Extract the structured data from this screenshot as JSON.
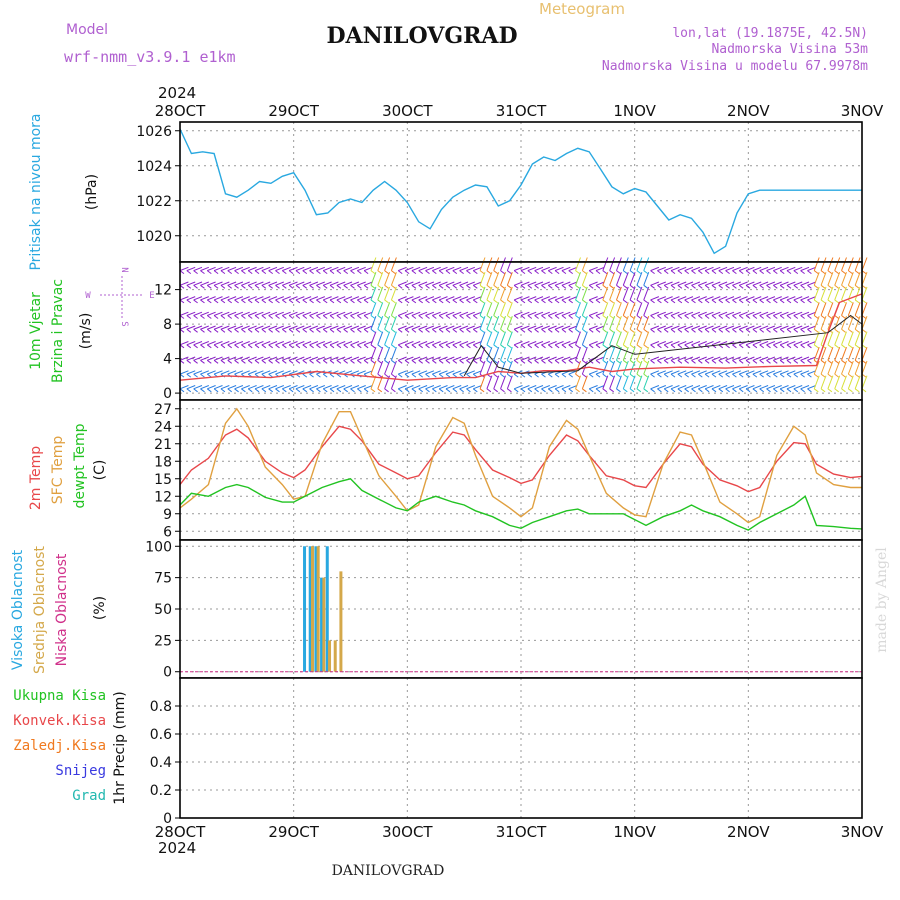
{
  "header": {
    "model_label": "Model",
    "model_name": "wrf-nmm_v3.9.1  e1km",
    "title": "DANILOVGRAD",
    "meteogram_label": "Meteogram",
    "coords": "lon,lat (19.1875E, 42.5N)",
    "altitude": "Nadmorska Visina 53m",
    "model_altitude": "Nadmorska Visina u modelu 67.9978m",
    "year": "2024",
    "footer_title": "DANILOVGRAD",
    "credit": "made by Angel"
  },
  "colors": {
    "pressure": "#29a8e0",
    "t2m": "#e8474a",
    "sfc": "#e0a040",
    "dewpt": "#22c322",
    "high_cloud": "#29a8e0",
    "mid_cloud": "#d4a84a",
    "low_cloud": "#d0308a",
    "barb_calm": "#8a1fc9",
    "barb_mid": "#2a7de0",
    "speed_line": "#e8474a",
    "gust_line": "#222222"
  },
  "chart_data": [
    {
      "type": "line",
      "name": "pressure",
      "labels": [
        "Pritisak na nivou mora",
        "(hPa)"
      ],
      "x_ticks": [
        "28OCT",
        "29OCT",
        "30OCT",
        "31OCT",
        "1NOV",
        "2NOV",
        "3NOV"
      ],
      "ylim": [
        1018.5,
        1026.5
      ],
      "y_ticks": [
        1020,
        1022,
        1024,
        1026
      ],
      "grid": true,
      "series": [
        {
          "color_key": "pressure",
          "x": [
            0,
            0.1,
            0.2,
            0.3,
            0.4,
            0.5,
            0.6,
            0.7,
            0.8,
            0.9,
            1.0,
            1.1,
            1.2,
            1.3,
            1.4,
            1.5,
            1.6,
            1.7,
            1.8,
            1.9,
            2.0,
            2.1,
            2.2,
            2.3,
            2.4,
            2.5,
            2.6,
            2.7,
            2.8,
            2.9,
            3.0,
            3.1,
            3.2,
            3.3,
            3.4,
            3.5,
            3.6,
            3.7,
            3.8,
            3.9,
            4.0,
            4.1,
            4.2,
            4.3,
            4.4,
            4.5,
            4.6,
            4.7,
            4.8,
            4.9,
            5.0,
            5.1,
            5.2,
            5.3,
            5.4,
            5.5,
            5.6,
            5.7,
            5.8,
            5.9,
            6.0
          ],
          "y": [
            1026.1,
            1024.7,
            1024.8,
            1024.7,
            1022.4,
            1022.2,
            1022.6,
            1023.1,
            1023.0,
            1023.4,
            1023.6,
            1022.6,
            1021.2,
            1021.3,
            1021.9,
            1022.1,
            1021.9,
            1022.6,
            1023.1,
            1022.6,
            1021.9,
            1020.8,
            1020.4,
            1021.5,
            1022.2,
            1022.6,
            1022.9,
            1022.8,
            1021.7,
            1022.0,
            1022.9,
            1024.1,
            1024.5,
            1024.3,
            1024.7,
            1025.0,
            1024.8,
            1023.8,
            1022.8,
            1022.4,
            1022.7,
            1022.5,
            1021.7,
            1020.9,
            1021.2,
            1021.0,
            1020.2,
            1019.0,
            1019.4,
            1021.3,
            1022.4,
            1022.6,
            1022.6,
            1022.6,
            1022.6,
            1022.6,
            1022.6,
            1022.6,
            1022.6,
            1022.6,
            1022.6
          ]
        }
      ]
    },
    {
      "type": "line",
      "name": "wind",
      "labels": [
        "10m Vjetar",
        "Brzina i Pravac",
        "(m/s)"
      ],
      "compass": [
        "W",
        "E",
        "N",
        "S"
      ],
      "ylim": [
        -0.8,
        15.2
      ],
      "y_ticks": [
        0,
        4,
        8,
        12
      ],
      "grid": true,
      "series": [
        {
          "color_key": "speed_line",
          "x": [
            0,
            0.4,
            0.8,
            1.2,
            1.6,
            2.0,
            2.4,
            2.6,
            2.8,
            3.0,
            3.2,
            3.4,
            3.6,
            3.8,
            4.0,
            4.4,
            4.8,
            5.2,
            5.6,
            5.7,
            5.8,
            6.0
          ],
          "y": [
            1.5,
            2.0,
            1.8,
            2.5,
            2.0,
            1.5,
            1.8,
            1.8,
            2.5,
            2.3,
            2.6,
            2.6,
            3.0,
            2.5,
            2.8,
            3.0,
            2.9,
            3.1,
            3.2,
            7.0,
            10.5,
            11.5
          ]
        },
        {
          "color_key": "gust_line",
          "x": [
            2.5,
            2.65,
            2.8,
            3.0,
            3.5,
            3.8,
            4.0,
            5.7,
            5.9,
            6.0
          ],
          "y": [
            2.0,
            5.5,
            3.0,
            2.3,
            2.6,
            5.5,
            4.5,
            7.0,
            9.0,
            8.0
          ]
        }
      ]
    },
    {
      "type": "line",
      "name": "temperature",
      "labels": [
        "2m Temp",
        "SFC Temp",
        "dewpt Temp",
        "(C)"
      ],
      "ylim": [
        4.5,
        28.5
      ],
      "y_ticks": [
        6,
        9,
        12,
        15,
        18,
        21,
        24,
        27
      ],
      "grid": true,
      "series": [
        {
          "color_key": "t2m",
          "x": [
            0,
            0.1,
            0.25,
            0.4,
            0.5,
            0.6,
            0.75,
            0.9,
            1.0,
            1.1,
            1.25,
            1.4,
            1.5,
            1.6,
            1.75,
            1.9,
            2.0,
            2.1,
            2.25,
            2.4,
            2.5,
            2.6,
            2.75,
            2.9,
            3.0,
            3.1,
            3.25,
            3.4,
            3.5,
            3.6,
            3.75,
            3.9,
            4.0,
            4.1,
            4.25,
            4.4,
            4.5,
            4.6,
            4.75,
            4.9,
            5.0,
            5.1,
            5.25,
            5.4,
            5.5,
            5.6,
            5.75,
            5.9,
            6.0
          ],
          "y": [
            14.0,
            16.5,
            18.5,
            22.5,
            23.5,
            22.0,
            18.0,
            16.0,
            15.2,
            16.5,
            20.5,
            24.0,
            23.5,
            21.5,
            17.5,
            16.0,
            15.0,
            15.5,
            19.5,
            23.0,
            22.5,
            20.0,
            16.5,
            15.2,
            14.2,
            14.8,
            19.0,
            22.5,
            21.5,
            19.0,
            15.5,
            14.8,
            13.8,
            13.5,
            17.5,
            21.0,
            20.5,
            17.5,
            14.8,
            13.8,
            12.8,
            13.5,
            18.0,
            21.2,
            21.0,
            17.5,
            15.8,
            15.2,
            15.4
          ]
        },
        {
          "color_key": "sfc",
          "x": [
            0,
            0.1,
            0.25,
            0.4,
            0.5,
            0.6,
            0.75,
            0.9,
            1.0,
            1.1,
            1.25,
            1.4,
            1.5,
            1.6,
            1.75,
            1.9,
            2.0,
            2.1,
            2.25,
            2.4,
            2.5,
            2.6,
            2.75,
            2.9,
            3.0,
            3.1,
            3.25,
            3.4,
            3.5,
            3.6,
            3.75,
            3.9,
            4.0,
            4.1,
            4.25,
            4.4,
            4.5,
            4.6,
            4.75,
            4.9,
            5.0,
            5.1,
            5.25,
            5.4,
            5.5,
            5.6,
            5.75,
            5.9,
            6.0
          ],
          "y": [
            10.0,
            11.5,
            14.0,
            24.5,
            27.0,
            24.0,
            17.0,
            14.0,
            11.5,
            12.0,
            21.0,
            26.5,
            26.5,
            22.0,
            15.5,
            12.0,
            9.5,
            10.5,
            20.5,
            25.5,
            24.5,
            19.0,
            12.0,
            10.0,
            8.5,
            10.0,
            20.5,
            25.0,
            23.5,
            19.0,
            12.5,
            10.0,
            8.8,
            8.5,
            17.5,
            23.0,
            22.5,
            18.0,
            11.0,
            9.0,
            7.5,
            8.5,
            19.0,
            24.0,
            22.5,
            16.0,
            14.0,
            13.5,
            13.5
          ]
        },
        {
          "color_key": "dewpt",
          "x": [
            0,
            0.1,
            0.25,
            0.4,
            0.5,
            0.6,
            0.75,
            0.9,
            1.0,
            1.1,
            1.25,
            1.4,
            1.5,
            1.6,
            1.75,
            1.9,
            2.0,
            2.1,
            2.25,
            2.4,
            2.5,
            2.6,
            2.75,
            2.9,
            3.0,
            3.1,
            3.25,
            3.4,
            3.5,
            3.6,
            3.75,
            3.9,
            4.0,
            4.1,
            4.25,
            4.4,
            4.5,
            4.6,
            4.75,
            4.9,
            5.0,
            5.1,
            5.25,
            5.4,
            5.5,
            5.6,
            5.75,
            5.9,
            6.0
          ],
          "y": [
            10.5,
            12.5,
            12.0,
            13.5,
            14.0,
            13.5,
            11.8,
            11.0,
            11.0,
            12.0,
            13.5,
            14.5,
            15.0,
            13.0,
            11.5,
            10.0,
            9.5,
            11.0,
            12.0,
            11.0,
            10.5,
            9.5,
            8.5,
            7.0,
            6.5,
            7.5,
            8.5,
            9.5,
            9.8,
            9.0,
            9.0,
            9.0,
            8.0,
            7.0,
            8.5,
            9.5,
            10.5,
            9.5,
            8.5,
            7.0,
            6.2,
            7.5,
            9.0,
            10.5,
            12.0,
            7.0,
            6.8,
            6.5,
            6.4
          ]
        }
      ]
    },
    {
      "type": "bar",
      "name": "cloud",
      "labels": [
        "Visoka Oblacnost",
        "Srednja Oblacnost",
        "Niska Oblacnost",
        "(%)"
      ],
      "ylim": [
        -5,
        105
      ],
      "y_ticks": [
        0,
        25,
        50,
        75,
        100
      ],
      "grid": true,
      "series": [
        {
          "color_key": "high_cloud",
          "x": [
            1.1,
            1.15,
            1.2,
            1.25,
            1.3
          ],
          "values": [
            100,
            100,
            100,
            75,
            100
          ]
        },
        {
          "color_key": "mid_cloud",
          "x": [
            1.17,
            1.22,
            1.27,
            1.32,
            1.37,
            1.42
          ],
          "values": [
            100,
            100,
            75,
            25,
            25,
            80
          ]
        },
        {
          "color_key": "low_cloud",
          "x": [],
          "values": []
        }
      ]
    },
    {
      "type": "line",
      "name": "precip",
      "labels": [
        "Ukupna Kisa",
        "Konvek.Kisa",
        "Zaledj.Kisa",
        "Snijeg",
        "Grad",
        "1hr Precip (mm)"
      ],
      "label_colors": [
        "#22c322",
        "#e8474a",
        "#f07a20",
        "#3a3ae0",
        "#22b8b0"
      ],
      "ylim": [
        0,
        1.0
      ],
      "y_ticks": [
        0,
        0.2,
        0.4,
        0.6,
        0.8
      ],
      "y_tick_labels": [
        "0",
        "0.2",
        "0.4",
        "0.6",
        "0.8"
      ],
      "grid": true,
      "series": []
    }
  ]
}
